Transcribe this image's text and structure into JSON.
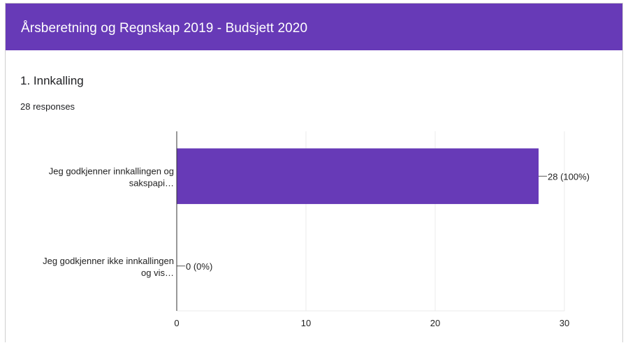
{
  "header": {
    "title": "Årsberetning og Regnskap 2019 - Budsjett 2020",
    "bg_color": "#673ab7"
  },
  "question": {
    "title": "1. Innkalling",
    "responses": "28 responses"
  },
  "chart_data": {
    "type": "bar",
    "orientation": "horizontal",
    "title": "",
    "xlabel": "",
    "ylabel": "",
    "categories": [
      [
        "Jeg godkjenner innkallingen og",
        "sakspapi…"
      ],
      [
        "Jeg godkjenner ikke innkallingen",
        "og vis…"
      ]
    ],
    "values": [
      28,
      0
    ],
    "value_labels": [
      "28 (100%)",
      "0 (0%)"
    ],
    "xlim": [
      0,
      30
    ],
    "xticks": [
      0,
      10,
      20,
      30
    ],
    "grid": true,
    "bar_color": "#673ab7"
  }
}
